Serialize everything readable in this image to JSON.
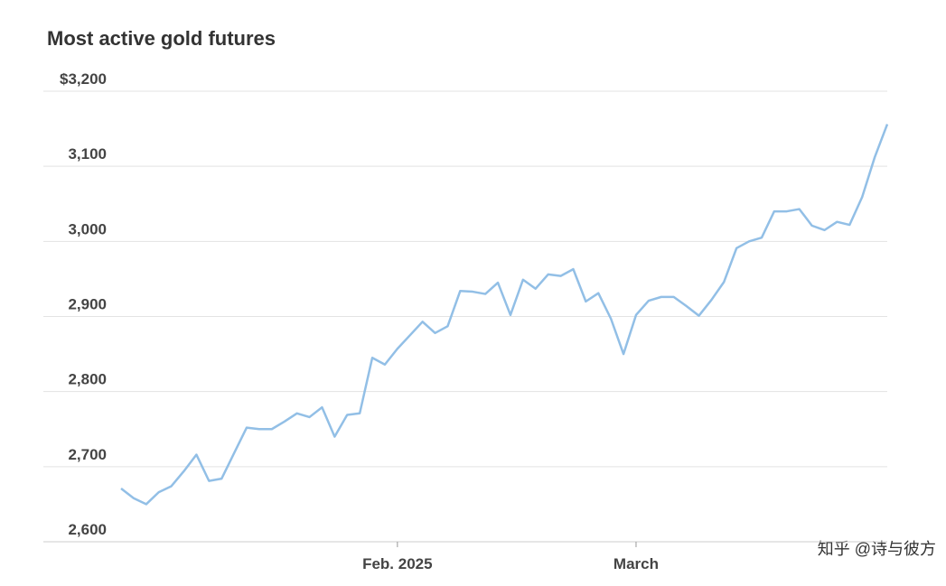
{
  "chart_data": {
    "type": "line",
    "title": "Most active gold futures",
    "categories": [
      null,
      null,
      null,
      null,
      null,
      null,
      null,
      null,
      null,
      null,
      null,
      null,
      null,
      null,
      null,
      null,
      null,
      null,
      null,
      null,
      null,
      null,
      "Feb. 2025",
      null,
      null,
      null,
      null,
      null,
      null,
      null,
      null,
      null,
      null,
      null,
      null,
      null,
      null,
      null,
      null,
      null,
      null,
      "March",
      null,
      null,
      null,
      null,
      null,
      null,
      null,
      null,
      null,
      null,
      null,
      null,
      null,
      null,
      null,
      null,
      null,
      null,
      null,
      null
    ],
    "series": [
      {
        "name": "Most active gold futures",
        "color": "#92bfe6",
        "values": [
          2671,
          2658,
          2650,
          2666,
          2674,
          2694,
          2716,
          2681,
          2684,
          2718,
          2752,
          2750,
          2750,
          2760,
          2771,
          2766,
          2779,
          2740,
          2769,
          2771,
          2845,
          2836,
          2857,
          2875,
          2893,
          2878,
          2887,
          2934,
          2933,
          2930,
          2945,
          2902,
          2949,
          2937,
          2956,
          2954,
          2963,
          2920,
          2931,
          2897,
          2850,
          2902,
          2921,
          2926,
          2926,
          2914,
          2901,
          2922,
          2946,
          2991,
          3000,
          3005,
          3040,
          3040,
          3043,
          3021,
          3015,
          3026,
          3022,
          3059,
          3112,
          3156
        ]
      }
    ],
    "ylim": [
      2600,
      3200
    ],
    "yticks": [
      {
        "value": 2600,
        "label": "2,600"
      },
      {
        "value": 2700,
        "label": "2,700"
      },
      {
        "value": 2800,
        "label": "2,800"
      },
      {
        "value": 2900,
        "label": "2,900"
      },
      {
        "value": 3000,
        "label": "3,000"
      },
      {
        "value": 3100,
        "label": "3,100"
      },
      {
        "value": 3200,
        "label": "$3,200"
      }
    ],
    "grid": true,
    "watermark": "知乎 @诗与彼方"
  }
}
